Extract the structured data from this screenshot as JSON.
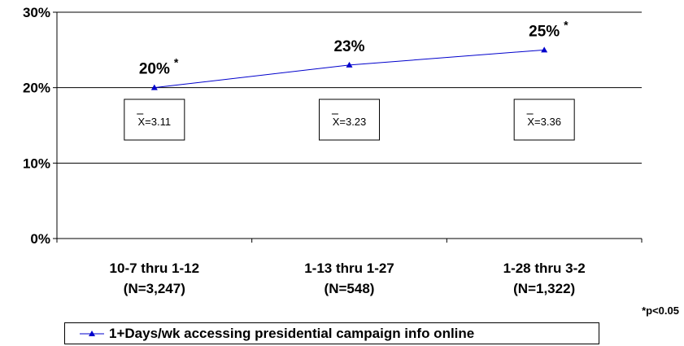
{
  "chart_data": {
    "type": "line",
    "categories": [
      [
        "10-7 thru 1-12",
        "(N=3,247)"
      ],
      [
        "1-13 thru 1-27",
        "(N=548)"
      ],
      [
        "1-28 thru 3-2",
        "(N=1,322)"
      ]
    ],
    "series": [
      {
        "name": "1+Days/wk accessing presidential campaign info online",
        "values": [
          20,
          23,
          25
        ],
        "color": "#0000cc",
        "marker": "triangle"
      }
    ],
    "data_labels": [
      {
        "text": "20%",
        "star": "*"
      },
      {
        "text": "23%",
        "star": ""
      },
      {
        "text": "25%",
        "star": "*"
      }
    ],
    "mean_boxes": [
      "X=3.11",
      "X=3.23",
      "X=3.36"
    ],
    "yticks": [
      "0%",
      "10%",
      "20%",
      "30%"
    ],
    "ylim": [
      0,
      30
    ],
    "grid": true,
    "legend_position": "bottom",
    "footnote": "*p<0.05"
  }
}
